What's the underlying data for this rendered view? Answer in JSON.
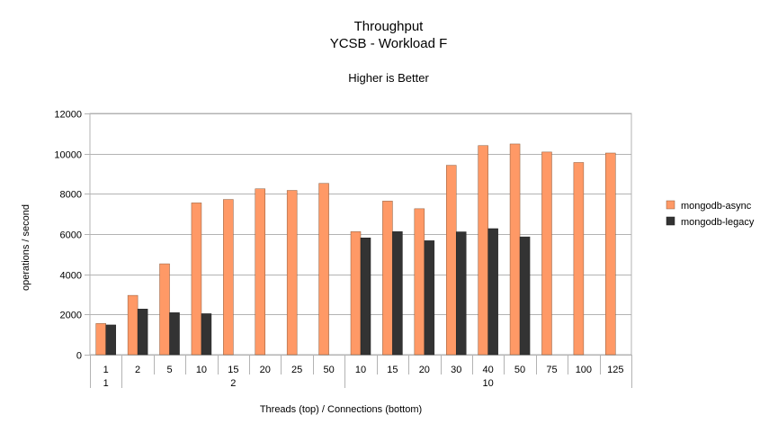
{
  "chart_data": {
    "type": "bar",
    "title": "Throughput",
    "subtitle": "YCSB - Workload F",
    "note": "Higher is Better",
    "xlabel": "Threads (top) / Connections (bottom)",
    "ylabel": "operations / second",
    "ylim": [
      0,
      12000
    ],
    "yticks": [
      0,
      2000,
      4000,
      6000,
      8000,
      10000,
      12000
    ],
    "grid": true,
    "legend_position": "right",
    "categories": [
      "1",
      "2",
      "5",
      "10",
      "15",
      "20",
      "25",
      "50",
      "10",
      "15",
      "20",
      "30",
      "40",
      "50",
      "75",
      "100",
      "125"
    ],
    "groups": [
      {
        "label": "1",
        "start": 0,
        "count": 1
      },
      {
        "label": "2",
        "start": 1,
        "count": 7
      },
      {
        "label": "10",
        "start": 8,
        "count": 9
      }
    ],
    "series": [
      {
        "name": "mongodb-async",
        "color": "#ff9966",
        "values": [
          1550,
          2950,
          4520,
          7550,
          7720,
          8250,
          8170,
          8520,
          6120,
          7640,
          7260,
          9420,
          10400,
          10480,
          10080,
          9560,
          10030
        ]
      },
      {
        "name": "mongodb-legacy",
        "color": "#333333",
        "values": [
          1480,
          2270,
          2090,
          2040,
          null,
          null,
          null,
          null,
          5810,
          6120,
          5670,
          6110,
          6270,
          5860,
          null,
          null,
          null
        ]
      }
    ]
  }
}
